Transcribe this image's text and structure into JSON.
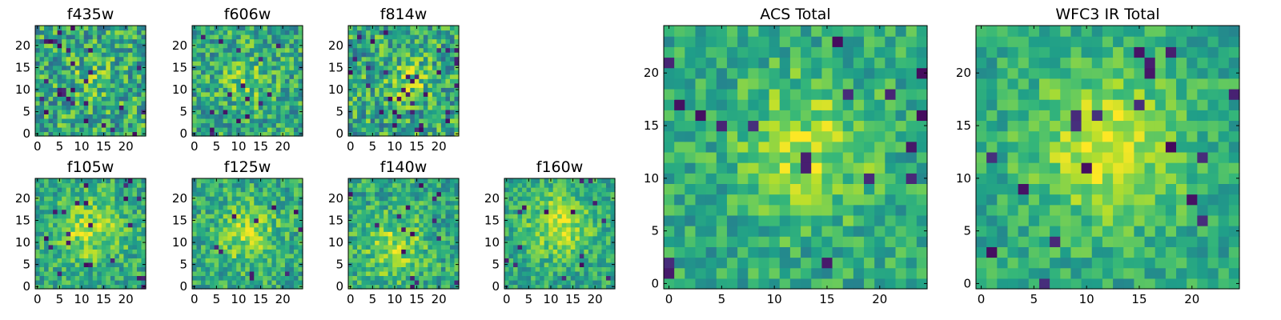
{
  "chart_data": [
    {
      "type": "heatmap",
      "title": "f435w",
      "xlim": [
        0,
        24
      ],
      "ylim": [
        0,
        24
      ],
      "xticks": [
        0,
        5,
        10,
        15,
        20
      ],
      "yticks": [
        0,
        5,
        10,
        15,
        20
      ],
      "grid_size": 25,
      "seed": 11,
      "peak": [
        12,
        12
      ],
      "peak_strength": 0.1,
      "peak_radius": 4,
      "noise": 0.55,
      "dark_fraction": 0.04,
      "colormap": "viridis"
    },
    {
      "type": "heatmap",
      "title": "f606w",
      "xlim": [
        0,
        24
      ],
      "ylim": [
        0,
        24
      ],
      "xticks": [
        0,
        5,
        10,
        15,
        20
      ],
      "yticks": [
        0,
        5,
        10,
        15,
        20
      ],
      "grid_size": 25,
      "seed": 23,
      "peak": [
        12,
        12
      ],
      "peak_strength": 0.15,
      "peak_radius": 4,
      "noise": 0.5,
      "dark_fraction": 0.02,
      "colormap": "viridis"
    },
    {
      "type": "heatmap",
      "title": "f814w",
      "xlim": [
        0,
        24
      ],
      "ylim": [
        0,
        24
      ],
      "xticks": [
        0,
        5,
        10,
        15,
        20
      ],
      "yticks": [
        0,
        5,
        10,
        15,
        20
      ],
      "grid_size": 25,
      "seed": 37,
      "peak": [
        13,
        12
      ],
      "peak_strength": 0.22,
      "peak_radius": 3.5,
      "noise": 0.55,
      "dark_fraction": 0.05,
      "colormap": "viridis"
    },
    {
      "type": "heatmap",
      "title": "f105w",
      "xlim": [
        0,
        24
      ],
      "ylim": [
        0,
        24
      ],
      "xticks": [
        0,
        5,
        10,
        15,
        20
      ],
      "yticks": [
        0,
        5,
        10,
        15,
        20
      ],
      "grid_size": 25,
      "seed": 41,
      "peak": [
        12,
        13
      ],
      "peak_strength": 0.28,
      "peak_radius": 5,
      "noise": 0.4,
      "dark_fraction": 0.03,
      "colormap": "viridis"
    },
    {
      "type": "heatmap",
      "title": "f125w",
      "xlim": [
        0,
        24
      ],
      "ylim": [
        0,
        24
      ],
      "xticks": [
        0,
        5,
        10,
        15,
        20
      ],
      "yticks": [
        0,
        5,
        10,
        15,
        20
      ],
      "grid_size": 25,
      "seed": 53,
      "peak": [
        12,
        12
      ],
      "peak_strength": 0.25,
      "peak_radius": 5,
      "noise": 0.4,
      "dark_fraction": 0.02,
      "colormap": "viridis"
    },
    {
      "type": "heatmap",
      "title": "f140w",
      "xlim": [
        0,
        24
      ],
      "ylim": [
        0,
        24
      ],
      "xticks": [
        0,
        5,
        10,
        15,
        20
      ],
      "yticks": [
        0,
        5,
        10,
        15,
        20
      ],
      "grid_size": 25,
      "seed": 67,
      "peak": [
        10,
        9
      ],
      "peak_strength": 0.25,
      "peak_radius": 5,
      "noise": 0.4,
      "dark_fraction": 0.02,
      "colormap": "viridis"
    },
    {
      "type": "heatmap",
      "title": "f160w",
      "xlim": [
        0,
        24
      ],
      "ylim": [
        0,
        24
      ],
      "xticks": [
        0,
        5,
        10,
        15,
        20
      ],
      "yticks": [
        0,
        5,
        10,
        15,
        20
      ],
      "grid_size": 25,
      "seed": 79,
      "peak": [
        12,
        14
      ],
      "peak_strength": 0.3,
      "peak_radius": 5,
      "noise": 0.35,
      "dark_fraction": 0.02,
      "colormap": "viridis"
    },
    {
      "type": "heatmap",
      "title": "ACS Total",
      "xlim": [
        0,
        24
      ],
      "ylim": [
        0,
        24
      ],
      "xticks": [
        0,
        5,
        10,
        15,
        20
      ],
      "yticks": [
        0,
        5,
        10,
        15,
        20
      ],
      "grid_size": 25,
      "seed": 83,
      "peak": [
        13,
        13
      ],
      "peak_strength": 0.28,
      "peak_radius": 4.5,
      "noise": 0.35,
      "dark_fraction": 0.025,
      "colormap": "viridis"
    },
    {
      "type": "heatmap",
      "title": "WFC3 IR Total",
      "xlim": [
        0,
        24
      ],
      "ylim": [
        0,
        24
      ],
      "xticks": [
        0,
        5,
        10,
        15,
        20
      ],
      "yticks": [
        0,
        5,
        10,
        15,
        20
      ],
      "grid_size": 25,
      "seed": 97,
      "peak": [
        12,
        13
      ],
      "peak_strength": 0.35,
      "peak_radius": 5,
      "noise": 0.3,
      "dark_fraction": 0.03,
      "colormap": "viridis"
    }
  ]
}
